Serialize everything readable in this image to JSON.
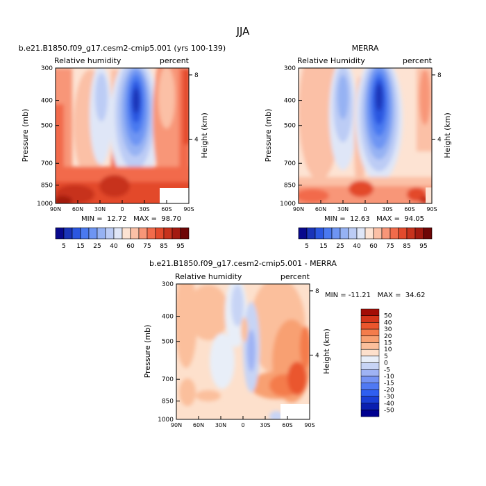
{
  "figure_title": "JJA",
  "chart_data": [
    {
      "type": "heatmap",
      "id": "model",
      "title": "b.e21.B1850.f09_g17.cesm2-cmip5.001 (yrs 100-139)",
      "left_label": "Relative humidity",
      "right_label": "percent",
      "ylabel": "Pressure (mb)",
      "ylabel_right": "Height (km)",
      "x_tick_labels": [
        "90N",
        "60N",
        "30N",
        "0",
        "30S",
        "60S",
        "90S"
      ],
      "x_tick_values": [
        90,
        60,
        30,
        0,
        -30,
        -60,
        -90
      ],
      "y_tick_labels": [
        "300",
        "400",
        "500",
        "700",
        "850",
        "1000"
      ],
      "y_tick_values": [
        300,
        400,
        500,
        700,
        850,
        1000
      ],
      "height_ticks": [
        "8",
        "4"
      ],
      "height_values": [
        8,
        4
      ],
      "xlim": [
        90,
        -90
      ],
      "ylim": [
        300,
        1000
      ],
      "stats": "MIN =  12.72   MAX =  98.70",
      "min": 12.72,
      "max": 98.7,
      "colorbar_levels": [
        5,
        10,
        15,
        20,
        25,
        30,
        40,
        50,
        60,
        70,
        75,
        80,
        85,
        90,
        95
      ],
      "colorbar_labels": [
        "5",
        "15",
        "25",
        "40",
        "60",
        "75",
        "85",
        "95"
      ],
      "colorbar_colors": [
        "#08088c",
        "#1a34b8",
        "#2b57e0",
        "#4a79f0",
        "#6e95f3",
        "#96b2f3",
        "#bcccf5",
        "#dfe6f7",
        "#fde3d3",
        "#fbc0a6",
        "#f89678",
        "#f26b4b",
        "#e34a2c",
        "#c7321c",
        "#a31a10",
        "#6e0606"
      ]
    },
    {
      "type": "heatmap",
      "id": "obs",
      "title": "MERRA",
      "left_label": "Relative Humidity",
      "right_label": "percent",
      "ylabel": "Pressure (mb)",
      "ylabel_right": "Height (km)",
      "x_tick_labels": [
        "90N",
        "60N",
        "30N",
        "0",
        "30S",
        "60S",
        "90S"
      ],
      "x_tick_values": [
        90,
        60,
        30,
        0,
        -30,
        -60,
        -90
      ],
      "y_tick_labels": [
        "300",
        "400",
        "500",
        "700",
        "850",
        "1000"
      ],
      "y_tick_values": [
        300,
        400,
        500,
        700,
        850,
        1000
      ],
      "height_ticks": [
        "8",
        "4"
      ],
      "height_values": [
        8,
        4
      ],
      "xlim": [
        90,
        -90
      ],
      "ylim": [
        300,
        1000
      ],
      "stats": "MIN =  12.63   MAX =  94.05",
      "min": 12.63,
      "max": 94.05,
      "colorbar_levels": [
        5,
        10,
        15,
        20,
        25,
        30,
        40,
        50,
        60,
        70,
        75,
        80,
        85,
        90,
        95
      ],
      "colorbar_labels": [
        "5",
        "15",
        "25",
        "40",
        "60",
        "75",
        "85",
        "95"
      ],
      "colorbar_colors": [
        "#08088c",
        "#1a34b8",
        "#2b57e0",
        "#4a79f0",
        "#6e95f3",
        "#96b2f3",
        "#bcccf5",
        "#dfe6f7",
        "#fde3d3",
        "#fbc0a6",
        "#f89678",
        "#f26b4b",
        "#e34a2c",
        "#c7321c",
        "#a31a10",
        "#6e0606"
      ]
    },
    {
      "type": "heatmap",
      "id": "diff",
      "title": "b.e21.B1850.f09_g17.cesm2-cmip5.001 - MERRA",
      "left_label": "Relative humidity",
      "right_label": "percent",
      "ylabel": "Pressure (mb)",
      "ylabel_right": "Height (km)",
      "x_tick_labels": [
        "90N",
        "60N",
        "30N",
        "0",
        "30S",
        "60S",
        "90S"
      ],
      "x_tick_values": [
        90,
        60,
        30,
        0,
        -30,
        -60,
        -90
      ],
      "y_tick_labels": [
        "300",
        "400",
        "500",
        "700",
        "850",
        "1000"
      ],
      "y_tick_values": [
        300,
        400,
        500,
        700,
        850,
        1000
      ],
      "height_ticks": [
        "8",
        "4"
      ],
      "height_values": [
        8,
        4
      ],
      "xlim": [
        90,
        -90
      ],
      "ylim": [
        300,
        1000
      ],
      "stats": "MIN = -11.21   MAX =  34.62",
      "min": -11.21,
      "max": 34.62,
      "colorbar_levels": [
        -50,
        -40,
        -30,
        -20,
        -15,
        -10,
        -5,
        0,
        5,
        10,
        15,
        20,
        30,
        40,
        50
      ],
      "colorbar_labels": [
        "50",
        "40",
        "30",
        "20",
        "15",
        "10",
        "5",
        "0",
        "-5",
        "-10",
        "-15",
        "-20",
        "-30",
        "-40",
        "-50"
      ],
      "colorbar_colors": [
        "#00008f",
        "#0a1fb0",
        "#1a3fd6",
        "#2f5ff0",
        "#5079f3",
        "#7593f4",
        "#9fb3f4",
        "#c7d4f5",
        "#e8eef8",
        "#fde0cc",
        "#fbbf9c",
        "#f8a072",
        "#f47c4c",
        "#ea562d",
        "#d4351a",
        "#a30d06"
      ]
    }
  ]
}
